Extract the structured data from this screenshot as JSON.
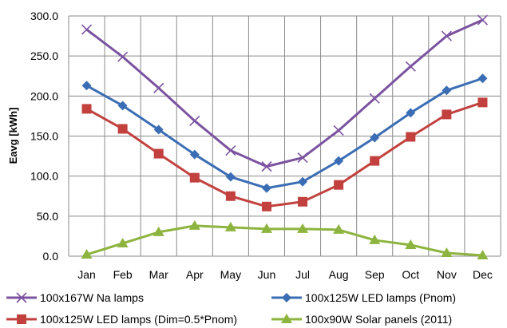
{
  "chart_data": {
    "type": "line",
    "title": "",
    "xlabel": "",
    "ylabel": "Eavg [kWh]",
    "ylim": [
      0,
      300
    ],
    "yticks": [
      "0.0",
      "50.0",
      "100.0",
      "150.0",
      "200.0",
      "250.0",
      "300.0"
    ],
    "grid": true,
    "legend_position": "bottom",
    "categories": [
      "Jan",
      "Feb",
      "Mar",
      "Apr",
      "May",
      "Jun",
      "Jul",
      "Aug",
      "Sep",
      "Oct",
      "Nov",
      "Dec"
    ],
    "series": [
      {
        "name": "100x167W Na lamps",
        "marker": "x",
        "color": "#7b52a0",
        "values": [
          283,
          249,
          210,
          169,
          132,
          112,
          123,
          157,
          197,
          237,
          275,
          295
        ]
      },
      {
        "name": "100x125W LED lamps (Pnom)",
        "marker": "diamond",
        "color": "#3b6db4",
        "values": [
          213,
          188,
          158,
          127,
          99,
          85,
          93,
          119,
          148,
          179,
          207,
          222
        ]
      },
      {
        "name": "100x125W LED lamps (Dim=0.5*Pnom)",
        "marker": "square",
        "color": "#c2413f",
        "values": [
          184,
          159,
          128,
          98,
          75,
          62,
          68,
          89,
          119,
          149,
          177,
          192
        ]
      },
      {
        "name": "100x90W Solar panels (2011)",
        "marker": "triangle",
        "color": "#8db43e",
        "values": [
          2,
          16,
          30,
          38,
          36,
          34,
          34,
          33,
          20,
          14,
          4,
          1
        ]
      }
    ]
  }
}
